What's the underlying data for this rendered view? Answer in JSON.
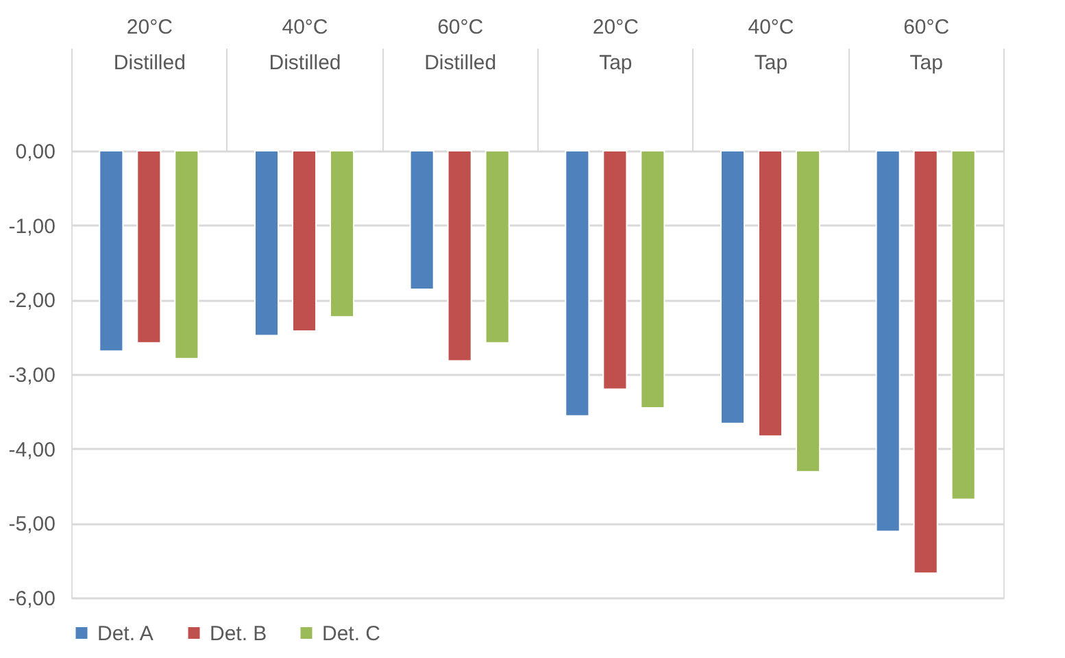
{
  "chart_data": {
    "type": "bar",
    "categories": [
      "20°C\nDistilled",
      "40°C\nDistilled",
      "60°C\nDistilled",
      "20°C\nTap",
      "40°C\nTap",
      "60°C\nTap"
    ],
    "series": [
      {
        "name": "Det. A",
        "color": "#4f81bd",
        "values": [
          -2.69,
          -2.48,
          -1.86,
          -3.56,
          -3.66,
          -5.11
        ]
      },
      {
        "name": "Det. B",
        "color": "#c0504d",
        "values": [
          -2.58,
          -2.42,
          -2.82,
          -3.2,
          -3.83,
          -5.67
        ]
      },
      {
        "name": "Det. C",
        "color": "#9bbb59",
        "values": [
          -2.79,
          -2.23,
          -2.58,
          -3.45,
          -4.31,
          -4.68
        ]
      }
    ],
    "ylim": [
      -6,
      0
    ],
    "yticks": [
      {
        "value": 0,
        "label": "0,00"
      },
      {
        "value": -1,
        "label": "-1,00"
      },
      {
        "value": -2,
        "label": "-2,00"
      },
      {
        "value": -3,
        "label": "-3,00"
      },
      {
        "value": -4,
        "label": "-4,00"
      },
      {
        "value": -5,
        "label": "-5,00"
      },
      {
        "value": -6,
        "label": "-6,00"
      }
    ],
    "grid": "y",
    "legend": "bottom"
  }
}
